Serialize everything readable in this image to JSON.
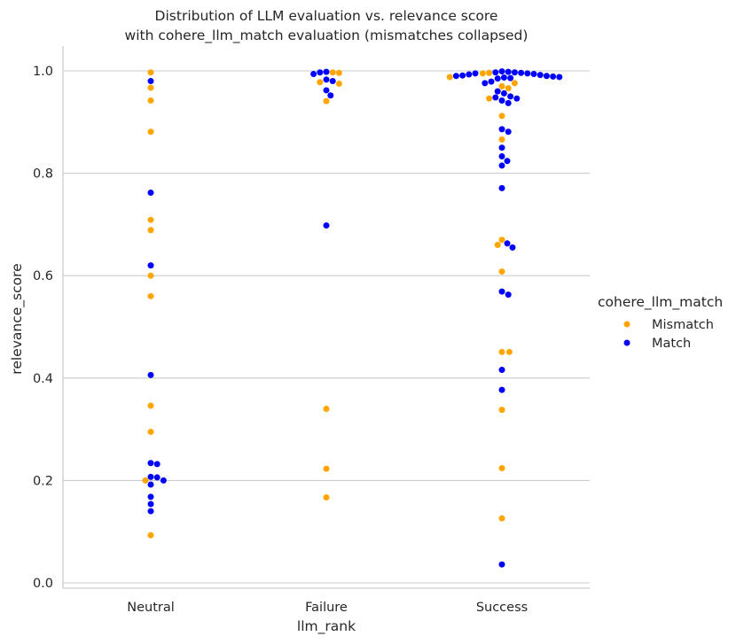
{
  "chart_data": {
    "type": "scatter",
    "subtype": "swarm",
    "title_line1": "Distribution of LLM evaluation vs. relevance score",
    "title_line2": "with cohere_llm_match evaluation (mismatches collapsed)",
    "xlabel": "llm_rank",
    "ylabel": "relevance_score",
    "categories": [
      "Neutral",
      "Failure",
      "Success"
    ],
    "yticks": [
      "0.0",
      "0.2",
      "0.4",
      "0.6",
      "0.8",
      "1.0"
    ],
    "ylim": [
      -0.01,
      1.05
    ],
    "grid": "horizontal",
    "legend": {
      "title": "cohere_llm_match",
      "position": "right",
      "entries": [
        {
          "label": "Mismatch",
          "color": "#FFA500"
        },
        {
          "label": "Match",
          "color": "#0000FF"
        }
      ]
    },
    "series": [
      {
        "name": "Mismatch",
        "color": "#FFA500",
        "points": {
          "Neutral": [
            0.997,
            0.967,
            0.942,
            0.881,
            0.709,
            0.689,
            0.6,
            0.56,
            0.346,
            0.295,
            0.2,
            0.093
          ],
          "Failure": [
            0.997,
            0.996,
            0.978,
            0.975,
            0.941,
            0.34,
            0.223,
            0.167
          ],
          "Success": [
            0.996,
            0.995,
            0.988,
            0.976,
            0.97,
            0.966,
            0.946,
            0.912,
            0.866,
            0.67,
            0.66,
            0.608,
            0.451,
            0.451,
            0.338,
            0.224,
            0.126
          ]
        }
      },
      {
        "name": "Match",
        "color": "#0000FF",
        "points": {
          "Neutral": [
            0.98,
            0.762,
            0.62,
            0.406,
            0.234,
            0.232,
            0.207,
            0.206,
            0.2,
            0.192,
            0.168,
            0.154,
            0.14
          ],
          "Failure": [
            0.998,
            0.997,
            0.994,
            0.983,
            0.98,
            0.962,
            0.952,
            0.698
          ],
          "Success": [
            0.999,
            0.998,
            0.997,
            0.997,
            0.996,
            0.995,
            0.995,
            0.994,
            0.993,
            0.992,
            0.991,
            0.99,
            0.99,
            0.989,
            0.988,
            0.987,
            0.986,
            0.985,
            0.979,
            0.976,
            0.96,
            0.956,
            0.95,
            0.948,
            0.946,
            0.942,
            0.937,
            0.886,
            0.881,
            0.85,
            0.833,
            0.824,
            0.815,
            0.771,
            0.663,
            0.655,
            0.569,
            0.563,
            0.416,
            0.377,
            0.036
          ]
        }
      }
    ]
  }
}
